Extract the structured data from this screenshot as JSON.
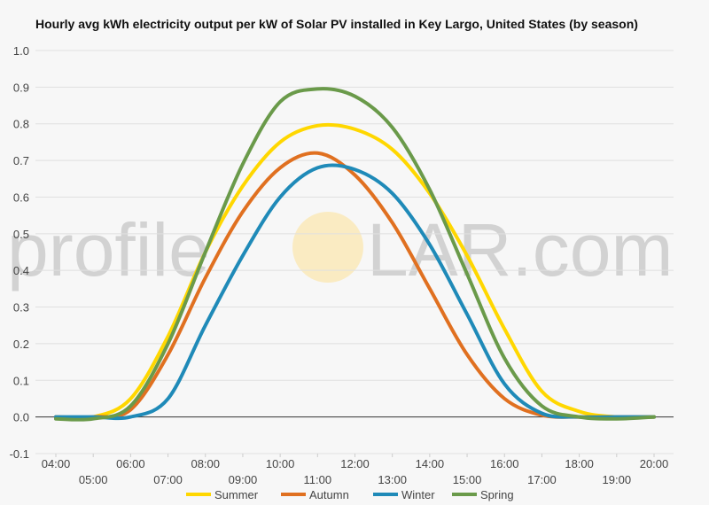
{
  "chart_data": {
    "type": "line",
    "title": "Hourly avg kWh electricity output per kW of Solar PV installed in Key Largo, United States (by season)",
    "xlabel": "",
    "ylabel": "",
    "ylim": [
      -0.1,
      1.0
    ],
    "yticks": [
      "-0.1",
      "0.0",
      "0.1",
      "0.2",
      "0.3",
      "0.4",
      "0.5",
      "0.6",
      "0.7",
      "0.8",
      "0.9",
      "1.0"
    ],
    "x": [
      "04:00",
      "05:00",
      "06:00",
      "07:00",
      "08:00",
      "09:00",
      "10:00",
      "11:00",
      "12:00",
      "13:00",
      "14:00",
      "15:00",
      "16:00",
      "17:00",
      "18:00",
      "19:00",
      "20:00"
    ],
    "grid": true,
    "legend_position": "bottom",
    "series": [
      {
        "name": "Summer",
        "color": "#ffd700",
        "values": [
          0.0,
          0.0,
          0.05,
          0.22,
          0.45,
          0.63,
          0.75,
          0.795,
          0.785,
          0.73,
          0.61,
          0.44,
          0.24,
          0.07,
          0.015,
          0.0,
          0.0
        ]
      },
      {
        "name": "Autumn",
        "color": "#e07020",
        "values": [
          0.0,
          0.0,
          0.02,
          0.17,
          0.38,
          0.56,
          0.68,
          0.72,
          0.66,
          0.53,
          0.35,
          0.17,
          0.05,
          0.005,
          0.0,
          0.0,
          0.0
        ]
      },
      {
        "name": "Winter",
        "color": "#1f8ab8",
        "values": [
          0.0,
          0.0,
          0.0,
          0.05,
          0.25,
          0.44,
          0.6,
          0.68,
          0.675,
          0.61,
          0.47,
          0.28,
          0.09,
          0.01,
          0.0,
          0.0,
          0.0
        ]
      },
      {
        "name": "Spring",
        "color": "#6a9a4a",
        "values": [
          -0.005,
          -0.005,
          0.03,
          0.2,
          0.45,
          0.69,
          0.86,
          0.895,
          0.875,
          0.79,
          0.62,
          0.39,
          0.16,
          0.03,
          0.0,
          -0.005,
          0.0
        ]
      }
    ]
  },
  "watermark": {
    "left": "profile",
    "right": "LAR.com",
    "sun_color": "#fbe7b0"
  }
}
